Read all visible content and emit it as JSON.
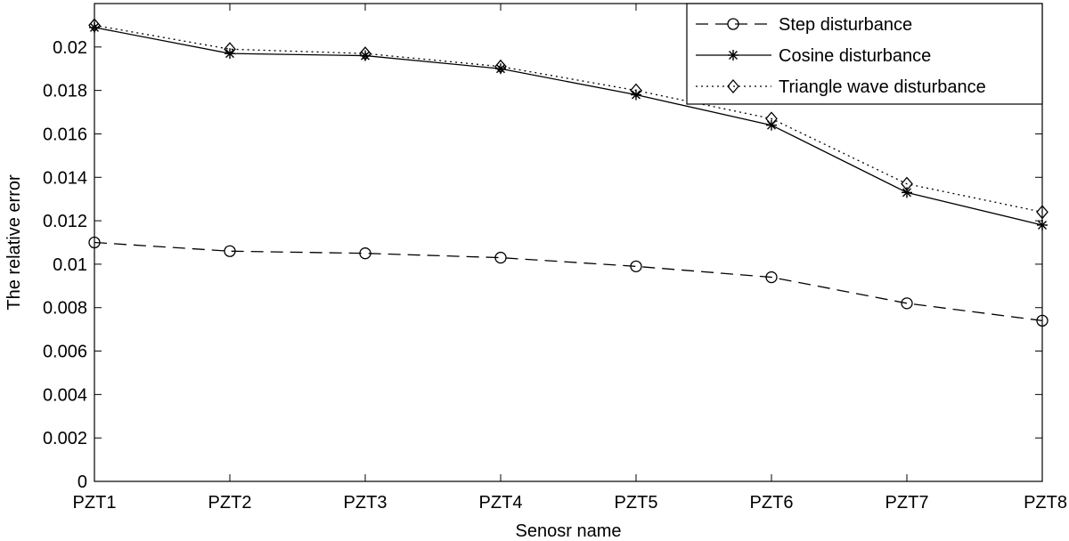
{
  "chart_data": {
    "type": "line",
    "title": "",
    "xlabel": "Senosr name",
    "ylabel": "The relative error",
    "categories": [
      "PZT1",
      "PZT2",
      "PZT3",
      "PZT4",
      "PZT5",
      "PZT6",
      "PZT7",
      "PZT8"
    ],
    "ylim": [
      0,
      0.022
    ],
    "yticks": [
      0,
      0.002,
      0.004,
      0.006,
      0.008,
      0.01,
      0.012,
      0.014,
      0.016,
      0.018,
      0.02
    ],
    "ytick_labels": [
      "0",
      "0.002",
      "0.004",
      "0.006",
      "0.008",
      "0.01",
      "0.012",
      "0.014",
      "0.016",
      "0.018",
      "0.02"
    ],
    "grid": false,
    "legend_position": "top-right",
    "series": [
      {
        "name": "Step disturbance",
        "values": [
          0.011,
          0.0106,
          0.0105,
          0.0103,
          0.0099,
          0.0094,
          0.0082,
          0.0074
        ],
        "line_style": "dashed",
        "marker": "circle",
        "color": "#000000"
      },
      {
        "name": "Cosine disturbance",
        "values": [
          0.0209,
          0.0197,
          0.0196,
          0.019,
          0.0178,
          0.0164,
          0.0133,
          0.0118
        ],
        "line_style": "solid",
        "marker": "asterisk",
        "color": "#000000"
      },
      {
        "name": "Triangle wave disturbance",
        "values": [
          0.021,
          0.0199,
          0.0197,
          0.0191,
          0.018,
          0.0167,
          0.0137,
          0.0124
        ],
        "line_style": "dotted",
        "marker": "diamond",
        "color": "#000000"
      }
    ]
  }
}
